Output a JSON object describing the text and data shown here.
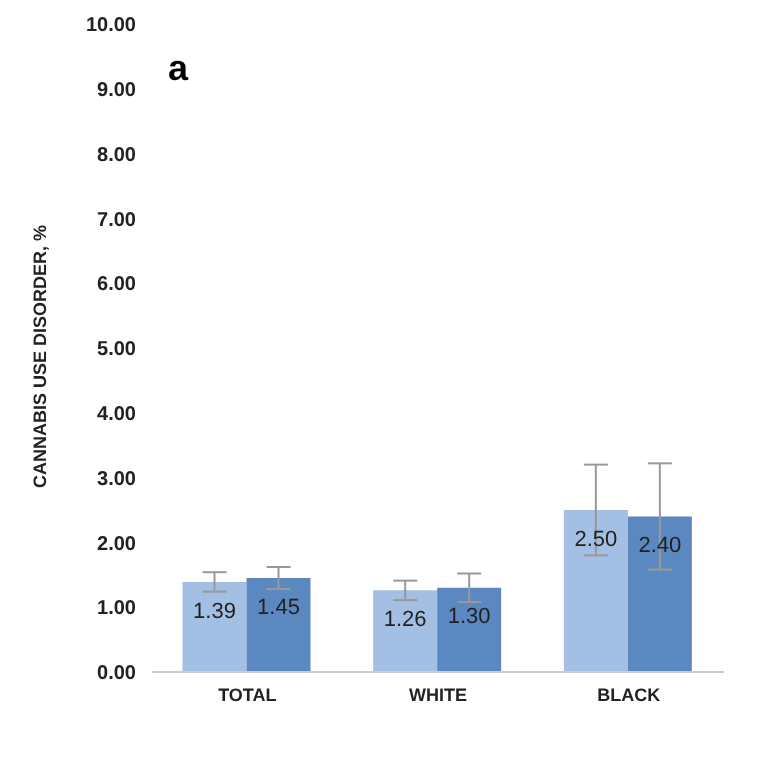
{
  "chart_data": {
    "type": "bar",
    "title": "a",
    "ylabel": "CANNABIS USE DISORDER, %",
    "categories": [
      "TOTAL",
      "WHITE",
      "BLACK"
    ],
    "series": [
      {
        "color": "#a3bfe3",
        "values": [
          1.39,
          1.26,
          2.5
        ],
        "value_labels": [
          "1.39",
          "1.26",
          "2.50"
        ],
        "errors": [
          0.15,
          0.15,
          0.7
        ]
      },
      {
        "color": "#5b88c0",
        "values": [
          1.45,
          1.3,
          2.4
        ],
        "value_labels": [
          "1.45",
          "1.30",
          "2.40"
        ],
        "errors": [
          0.17,
          0.22,
          0.82
        ]
      }
    ],
    "ylim": [
      0,
      10
    ],
    "yticks": [
      {
        "value": 0,
        "label": "0.00"
      },
      {
        "value": 1,
        "label": "1.00"
      },
      {
        "value": 2,
        "label": "2.00"
      },
      {
        "value": 3,
        "label": "3.00"
      },
      {
        "value": 4,
        "label": "4.00"
      },
      {
        "value": 5,
        "label": "5.00"
      },
      {
        "value": 6,
        "label": "6.00"
      },
      {
        "value": 7,
        "label": "7.00"
      },
      {
        "value": 8,
        "label": "8.00"
      },
      {
        "value": 9,
        "label": "9.00"
      },
      {
        "value": 10,
        "label": "10.00"
      }
    ],
    "grid": false,
    "legend": false
  }
}
